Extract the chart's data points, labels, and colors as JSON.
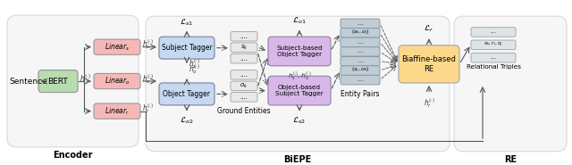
{
  "fig_width": 6.4,
  "fig_height": 1.85,
  "bg_color": "#ffffff",
  "encoder_box_color": "#dddddd",
  "biepe_box_color": "#dddddd",
  "re_box_color": "#dddddd",
  "bert_fc": "#b8dcb0",
  "bert_ec": "#999999",
  "linear_fc": "#f5b8b8",
  "linear_ec": "#999999",
  "tagger_fc": "#c5d9f1",
  "tagger_ec": "#8888aa",
  "ground_fc": "#e8eaea",
  "ground_ec": "#aaaaaa",
  "cross_tagger_fc": "#d8b8e8",
  "cross_tagger_ec": "#9988aa",
  "entity_pair_fc": "#c0cdd4",
  "entity_pair_ec": "#8899aa",
  "biaffine_fc": "#fcd98a",
  "biaffine_ec": "#aaaaaa",
  "rel_fc": "#dde4e8",
  "rel_ec": "#aaaaaa",
  "arrow_c": "#555555",
  "dash_c": "#555555",
  "text_c": "#333333",
  "encoder_label": "Encoder",
  "biepe_label": "BiEPE",
  "re_label": "RE",
  "sentence_label": "Sentence",
  "bert_label": "BERT",
  "linear_s_label": "$Linear_s$",
  "linear_o_label": "$Linear_o$",
  "linear_r_label": "$Linear_r$",
  "subject_tagger_label": "Subject Tagger",
  "object_tagger_label": "Object Tagger",
  "ground_entities_label": "Ground Entities",
  "subj_obj_tagger_label": "Subject-based\nObject Tagger",
  "obj_subj_tagger_label": "Object-based\nSubject Tagger",
  "entity_pairs_label": "Entity Pairs",
  "biaffine_label": "Biaffine-based\nRE",
  "rel_triples_label": "Relational Triples"
}
